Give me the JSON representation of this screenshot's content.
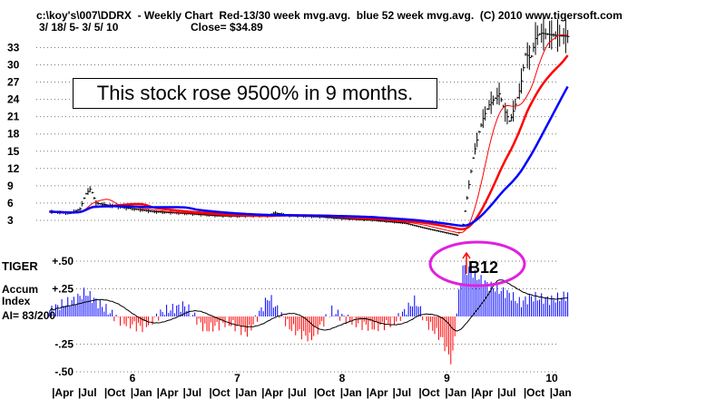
{
  "header": {
    "line1": "c:\\koy's\\007\\DDRX  - Weekly Chart  Red-13/30 week mvg.avg.  blue 52 week mvg.avg.  (C) 2010 www.tigersoft.com",
    "dates": "3/ 18/ 5- 3/ 5/ 10",
    "close": "Close= $34.89"
  },
  "annotation": "This stock rose 9500% in 9 months.",
  "signal": {
    "label": "B12",
    "arrow_color": "#ff0000",
    "circle_color": "#e020e0"
  },
  "indicator": {
    "name": "TIGER",
    "title": "Accum\nIndex",
    "ai": "AI= 83/200"
  },
  "chart_data": {
    "type": "line",
    "title": "DDRX Weekly Chart",
    "price_axis": {
      "ticks": [
        3,
        6,
        9,
        12,
        15,
        18,
        21,
        24,
        27,
        30,
        33
      ],
      "range": [
        0,
        35.5
      ]
    },
    "accum_axis": {
      "ticks": [
        {
          "v": 0.5,
          "label": "+.50"
        },
        {
          "v": 0.25,
          "label": "+.25"
        },
        {
          "v": -0.25,
          "label": "-.25"
        },
        {
          "v": -0.5,
          "label": "-.50"
        }
      ]
    },
    "year_labels": [
      "6",
      "7",
      "8",
      "9",
      "10"
    ],
    "year_values": [
      2006,
      2007,
      2008,
      2009,
      2010
    ],
    "month_labels": [
      "Apr",
      "Jul",
      "Oct",
      "Jan",
      "Apr",
      "Jul",
      "Oct",
      "Jan",
      "Apr",
      "Jul",
      "Oct",
      "Jan",
      "Apr",
      "Jul",
      "Oct",
      "Jan",
      "Apr",
      "Jul",
      "Oct",
      "Jan"
    ],
    "price": {
      "x": [
        2005.21,
        2005.4,
        2005.5,
        2005.55,
        2005.6,
        2005.65,
        2005.8,
        2006.0,
        2006.2,
        2006.5,
        2006.8,
        2007.0,
        2007.3,
        2007.35,
        2007.5,
        2007.8,
        2008.0,
        2008.3,
        2008.6,
        2008.8,
        2009.0,
        2009.1,
        2009.15,
        2009.2,
        2009.25,
        2009.3,
        2009.35,
        2009.4,
        2009.45,
        2009.5,
        2009.55,
        2009.6,
        2009.65,
        2009.7,
        2009.75,
        2009.8,
        2009.85,
        2009.9,
        2010.0,
        2010.17
      ],
      "y": [
        4.5,
        4.2,
        5,
        7.5,
        8.5,
        6,
        5.5,
        5,
        4.5,
        4.2,
        3.8,
        3.7,
        3.8,
        4.3,
        3.8,
        3.6,
        3.3,
        3.0,
        2.5,
        1.6,
        0.8,
        0.4,
        2,
        8,
        14,
        18,
        21,
        23,
        24,
        25,
        22,
        20,
        23,
        26,
        32,
        31,
        35,
        35.5,
        35.2,
        34.89
      ]
    },
    "accum": {
      "x": [
        2005.21,
        2005.3,
        2005.45,
        2005.55,
        2005.7,
        2005.9,
        2006.1,
        2006.3,
        2006.5,
        2006.7,
        2006.9,
        2007.1,
        2007.3,
        2007.5,
        2007.7,
        2007.9,
        2008.1,
        2008.3,
        2008.5,
        2008.7,
        2008.8,
        2008.95,
        2009.05,
        2009.1,
        2009.15,
        2009.2,
        2009.4,
        2009.6,
        2009.7,
        2009.8,
        2010.0,
        2010.17
      ],
      "y": [
        0.05,
        0.1,
        0.15,
        0.22,
        0.1,
        -0.05,
        -0.1,
        0.05,
        0.1,
        -0.12,
        -0.05,
        -0.15,
        0.18,
        -0.1,
        -0.2,
        0.05,
        -0.05,
        -0.1,
        -0.05,
        0.15,
        -0.05,
        -0.2,
        -0.42,
        0.1,
        0.45,
        0.42,
        0.28,
        0.2,
        0.12,
        0.18,
        0.15,
        0.2
      ]
    }
  }
}
